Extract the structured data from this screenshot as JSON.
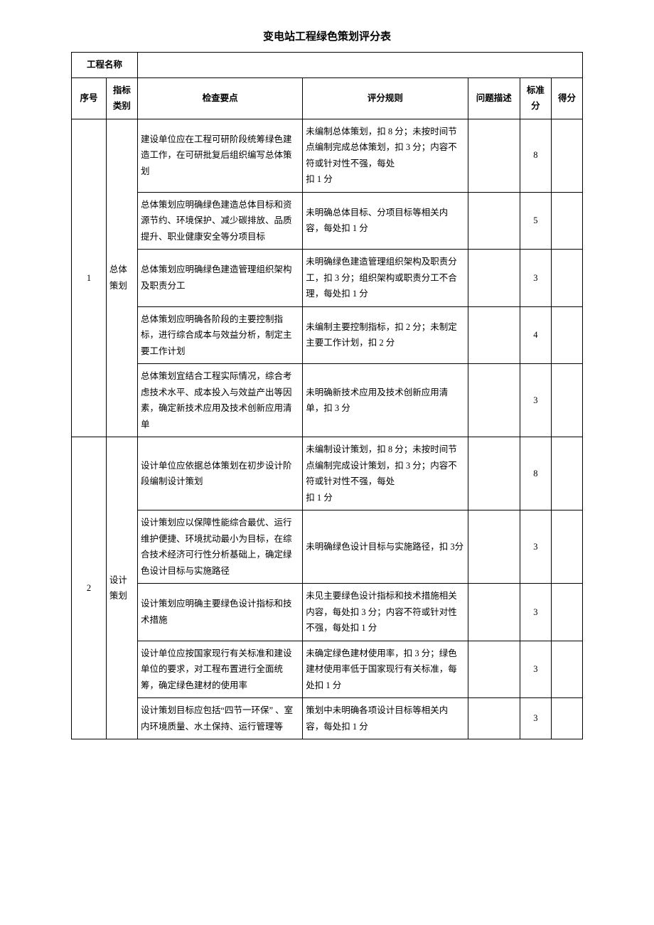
{
  "title": "变电站工程绿色策划评分表",
  "projectLabel": "工程名称",
  "headers": {
    "seq": "序号",
    "cat": "指标类别",
    "check": "检查要点",
    "rule": "评分规则",
    "desc": "问题描述",
    "std": "标准分",
    "score": "得分"
  },
  "groups": [
    {
      "seq": "1",
      "cat": "总体策划",
      "rows": [
        {
          "check": "建设单位应在工程可研阶段统筹绿色建造工作，在可研批复后组织编写总体策划",
          "rule": "未编制总体策划，扣 8 分；未按时间节点编制完成总体策划，扣 3 分；内容不符或针对性不强，每处\n扣 1 分",
          "std": "8"
        },
        {
          "check": "总体策划应明确绿色建造总体目标和资源节约、环境保护、减少碳排放、品质提升、职业健康安全等分项目标",
          "rule": "未明确总体目标、分项目标等相关内容，每处扣 1 分",
          "std": "5"
        },
        {
          "check": "总体策划应明确绿色建造管理组织架构及职责分工",
          "rule": "未明确绿色建造管理组织架构及职责分工，扣 3 分；组织架构或职责分工不合理，每处扣 1 分",
          "std": "3"
        },
        {
          "check": "总体策划应明确各阶段的主要控制指标，进行综合成本与效益分析，制定主要工作计划",
          "rule": "未编制主要控制指标，扣 2 分；未制定主要工作计划，扣 2 分",
          "std": "4"
        },
        {
          "check": "总体策划宜结合工程实际情况，综合考虑技术水平、成本投入与效益产出等因素，确定新技术应用及技术创新应用清单",
          "rule": "未明确新技术应用及技术创新应用清单，扣 3 分",
          "std": "3"
        }
      ]
    },
    {
      "seq": "2",
      "cat": "设计策划",
      "rows": [
        {
          "check": "设计单位应依据总体策划在初步设计阶段编制设计策划",
          "rule": "未编制设计策划，扣 8 分；未按时间节点编制完成设计策划，扣 3 分；内容不符或针对性不强，每处\n扣 1 分",
          "std": "8"
        },
        {
          "check": "设计策划应以保障性能综合最优、运行维护便捷、环境扰动最小为目标，在综合技术经济可行性分析基础上，确定绿色设计目标与实施路径",
          "rule": "未明确绿色设计目标与实施路径，扣 3分",
          "std": "3"
        },
        {
          "check": "设计策划应明确主要绿色设计指标和技术措施",
          "rule": "未见主要绿色设计指标和技术措施相关内容，每处扣 3 分；内容不符或针对性不强，每处扣 1 分",
          "std": "3"
        },
        {
          "check": "设计单位应按国家现行有关标准和建设单位的要求，对工程布置进行全面统筹，确定绿色建材的使用率",
          "rule": "未确定绿色建材使用率，扣 3 分；绿色建材使用率低于国家现行有关标准，每处扣 1 分",
          "std": "3"
        },
        {
          "check": "设计策划目标应包括“四节一环保” 、室内环境质量、水土保持、运行管理等",
          "rule": "策划中未明确各项设计目标等相关内容，每处扣 1 分",
          "std": "3"
        }
      ]
    }
  ]
}
